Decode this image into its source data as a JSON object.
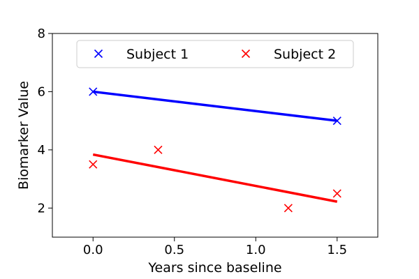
{
  "chart_data": {
    "type": "scatter",
    "title": "",
    "xlabel": "Years since baseline",
    "ylabel": "Biomarker Value",
    "xlim": [
      -0.25,
      1.75
    ],
    "ylim": [
      1,
      8
    ],
    "x_ticks": [
      0.0,
      0.5,
      1.0,
      1.5
    ],
    "x_tick_labels": [
      "0.0",
      "0.5",
      "1.0",
      "1.5"
    ],
    "y_ticks": [
      2,
      4,
      6,
      8
    ],
    "y_tick_labels": [
      "2",
      "4",
      "6",
      "8"
    ],
    "grid": false,
    "legend": {
      "placement": "top-center",
      "columns": 2
    },
    "series": [
      {
        "name": "Subject 1",
        "color": "#0000ff",
        "marker": "x",
        "points": [
          {
            "x": 0.0,
            "y": 6.0
          },
          {
            "x": 1.5,
            "y": 5.0
          }
        ],
        "fit_line": [
          {
            "x": 0.0,
            "y": 6.0
          },
          {
            "x": 1.5,
            "y": 5.0
          }
        ]
      },
      {
        "name": "Subject 2",
        "color": "#ff0000",
        "marker": "x",
        "points": [
          {
            "x": 0.0,
            "y": 3.5
          },
          {
            "x": 0.4,
            "y": 4.0
          },
          {
            "x": 1.2,
            "y": 2.0
          },
          {
            "x": 1.5,
            "y": 2.5
          }
        ],
        "fit_line": [
          {
            "x": 0.0,
            "y": 3.84
          },
          {
            "x": 1.5,
            "y": 2.22
          }
        ]
      }
    ]
  }
}
